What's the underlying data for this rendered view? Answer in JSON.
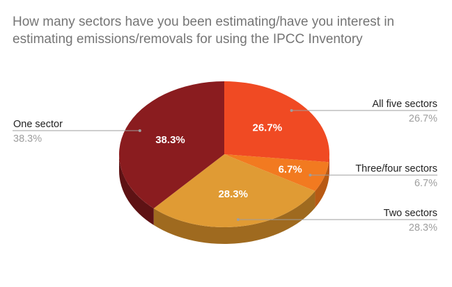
{
  "chart_data": {
    "type": "pie",
    "title": "How many sectors have you been estimating/have you interest in estimating emissions/removals for using the IPCC Inventory",
    "three_d": true,
    "slices": [
      {
        "name": "All five sectors",
        "value": 26.7,
        "label": "26.7%",
        "color": "#f04a23",
        "side_color": "#b83415"
      },
      {
        "name": "Three/four sectors",
        "value": 6.7,
        "label": "6.7%",
        "color": "#f27a20",
        "side_color": "#b85a14"
      },
      {
        "name": "Two sectors",
        "value": 28.3,
        "label": "28.3%",
        "color": "#e09b34",
        "side_color": "#9f6a1f"
      },
      {
        "name": "One sector",
        "value": 38.3,
        "label": "38.3%",
        "color": "#8a1c1f",
        "side_color": "#5e1214"
      }
    ]
  }
}
